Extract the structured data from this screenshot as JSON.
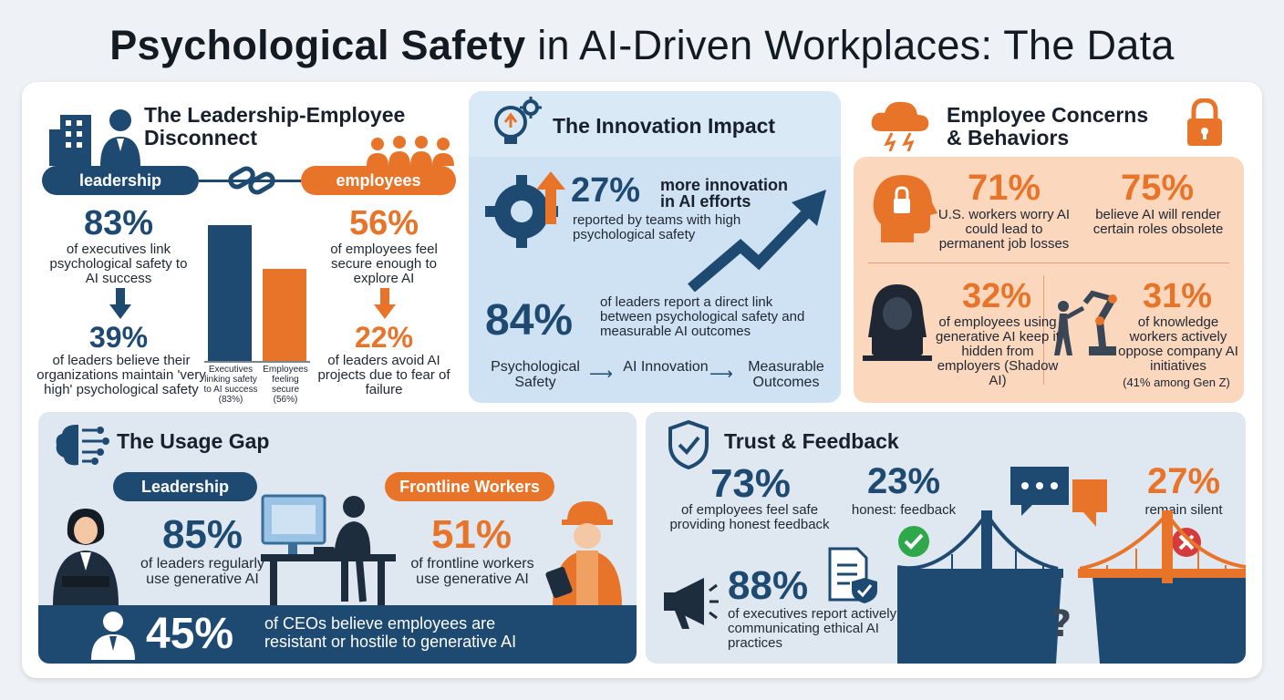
{
  "title_bold": "Psychological Safety",
  "title_rest": " in AI-Driven Workplaces: The Data",
  "disconnect": {
    "title_line1": "The Leadership-Employee",
    "title_line2": "Disconnect",
    "pill_leadership": "leadership",
    "pill_employees": "employees",
    "stat_83": "83%",
    "stat_83_text": "of executives link psychological safety to AI success",
    "stat_39": "39%",
    "stat_39_text": "of leaders believe their organizations maintain 'very high' psychological safety",
    "stat_56": "56%",
    "stat_56_text": "of employees feel secure enough to explore AI",
    "stat_22": "22%",
    "stat_22_text": "of leaders avoid AI projects due to fear of failure",
    "bar_exec_label": "Executives linking safety to AI success (83%)",
    "bar_emp_label": "Employees feeling secure (56%)",
    "bar_exec_value": 83,
    "bar_emp_value": 56
  },
  "innovation": {
    "title": "The Innovation Impact",
    "stat_27": "27%",
    "stat_27_head": "more innovation in AI efforts",
    "stat_27_text": "reported by teams with high psychological safety",
    "stat_84": "84%",
    "stat_84_text": "of leaders report a direct link between psychological safety and measurable AI outcomes",
    "flow_1": "Psychological Safety",
    "flow_2": "AI Innovation",
    "flow_3": "Measurable Outcomes"
  },
  "concerns": {
    "title_line1": "Employee Concerns",
    "title_line2": "& Behaviors",
    "stat_71": "71%",
    "stat_71_text": "U.S. workers worry AI could lead to permanent job losses",
    "stat_75": "75%",
    "stat_75_text": "believe AI will render certain roles obsolete",
    "stat_32": "32%",
    "stat_32_text": "of employees using generative AI keep it hidden from employers (Shadow AI)",
    "stat_31": "31%",
    "stat_31_text": "of knowledge workers actively oppose company AI initiatives",
    "stat_31_note": "(41% among Gen Z)"
  },
  "usage": {
    "title": "The Usage Gap",
    "pill_leadership": "Leadership",
    "pill_frontline": "Frontline Workers",
    "stat_85": "85%",
    "stat_85_text": "of leaders regularly use generative AI",
    "stat_51": "51%",
    "stat_51_text": "of frontline workers use generative AI",
    "stat_45": "45%",
    "stat_45_text": "of CEOs believe employees are resistant or hostile to generative AI"
  },
  "trust": {
    "title": "Trust & Feedback",
    "stat_73": "73%",
    "stat_73_text": "of employees feel safe providing honest feedback",
    "stat_23": "23%",
    "stat_23_text": "honest: feedback",
    "stat_27": "27%",
    "stat_27_text": "remain silent",
    "stat_88": "88%",
    "stat_88_text": "of executives report actively communicating ethical AI practices"
  },
  "colors": {
    "navy": "#1e4a72",
    "orange": "#e8742a",
    "green": "#2ea84a",
    "red": "#d63b3b"
  }
}
